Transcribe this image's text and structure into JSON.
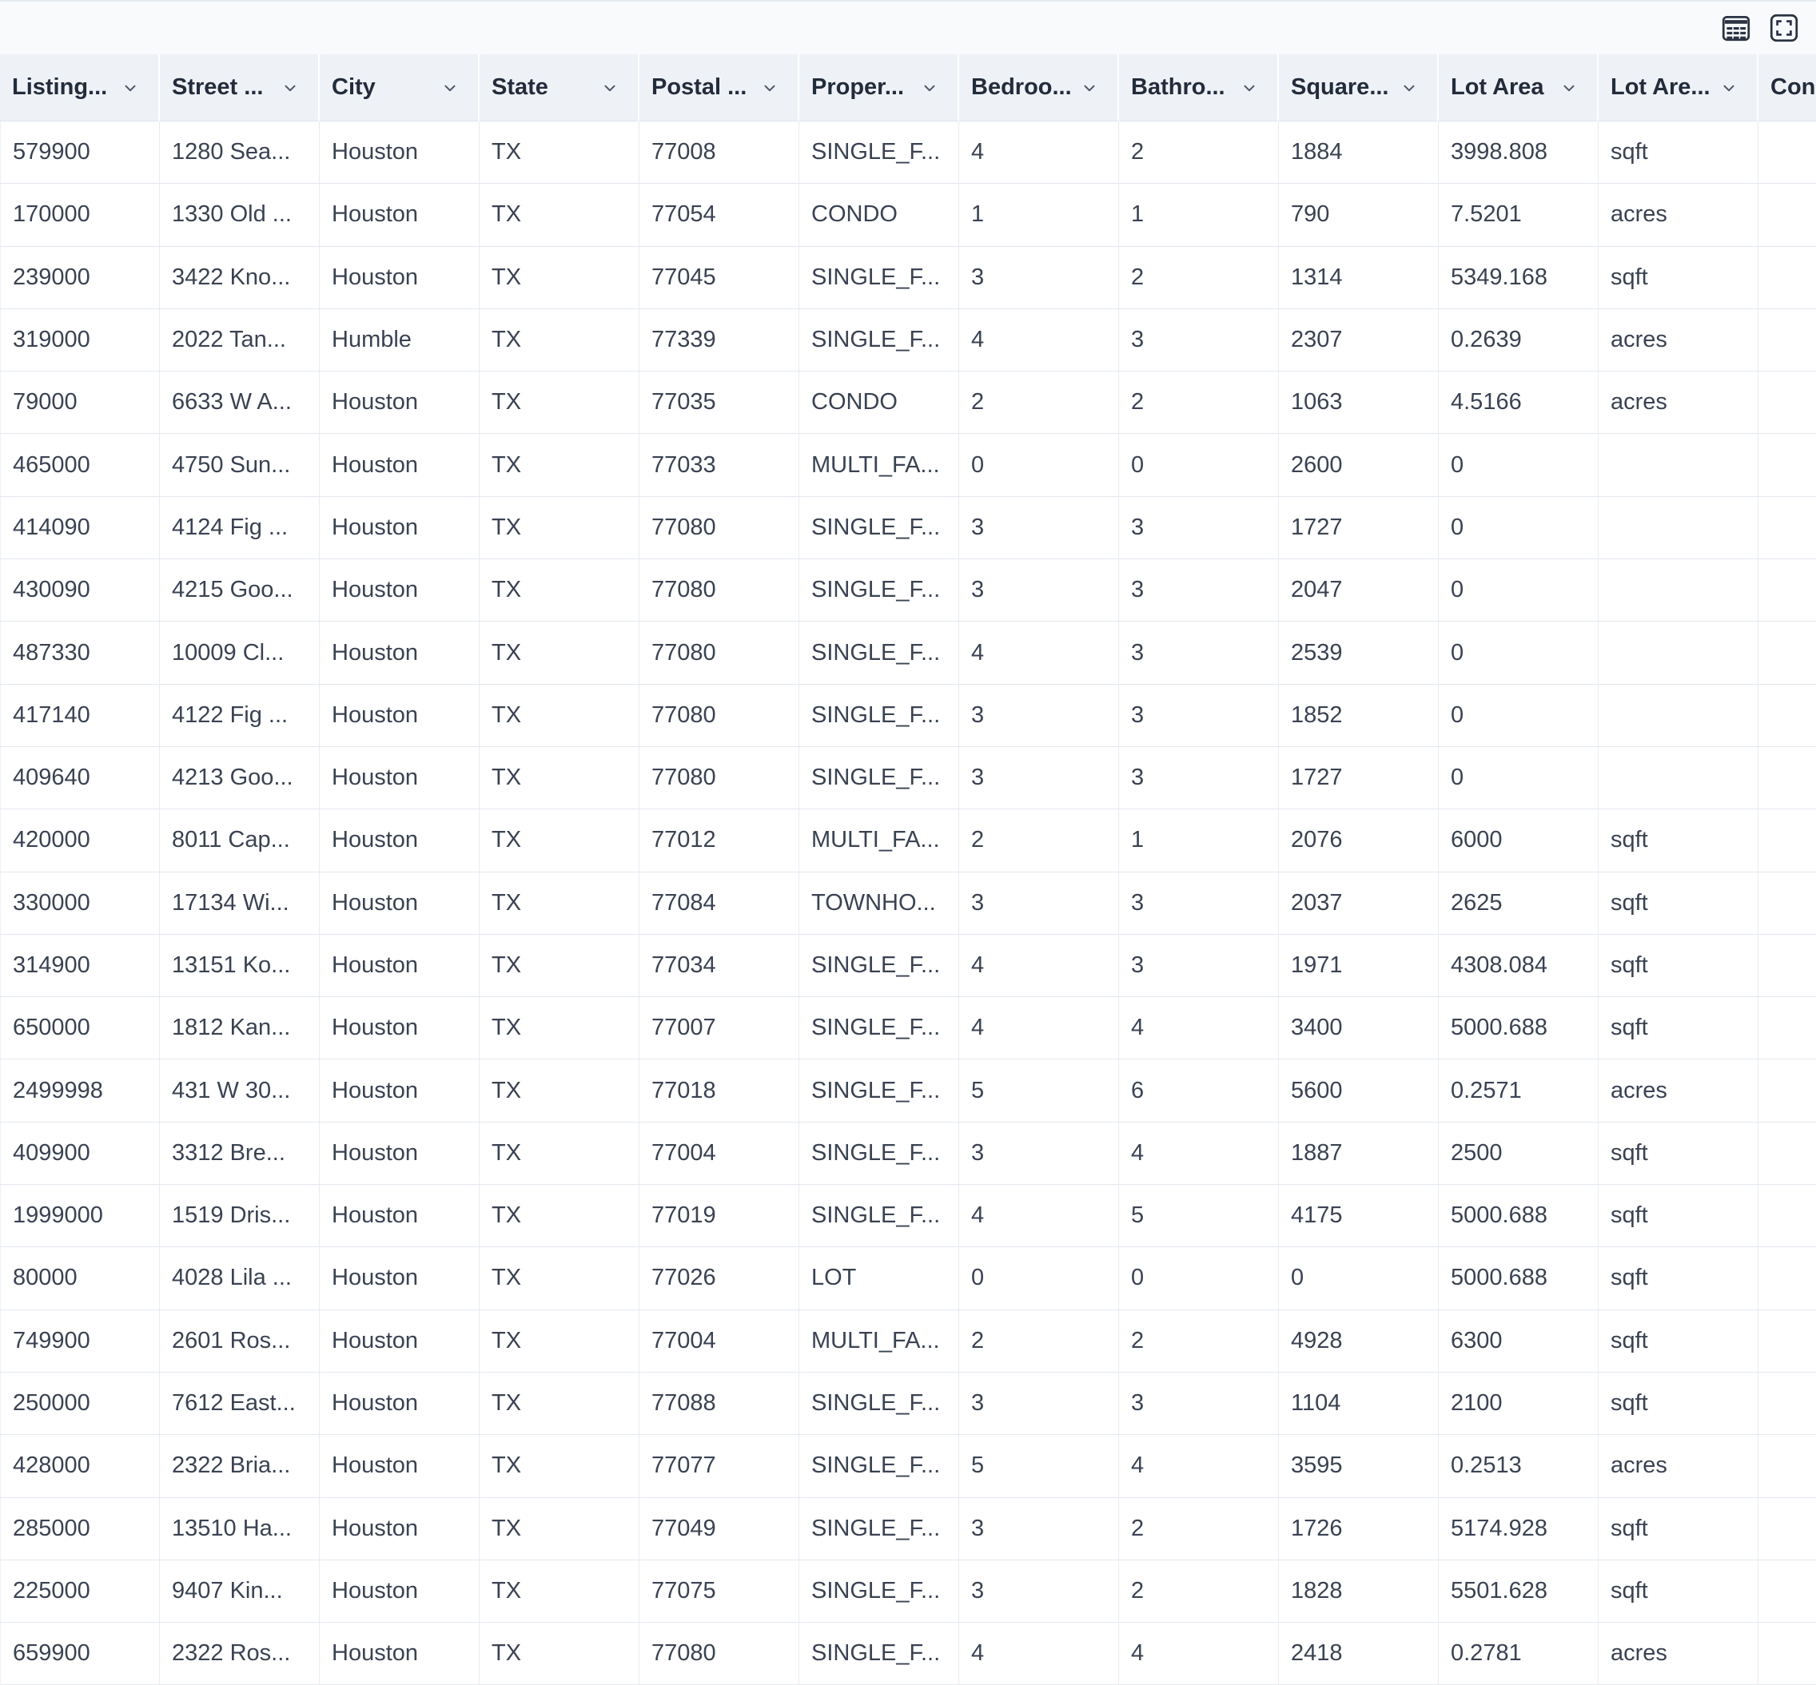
{
  "toolbar": {
    "icons": [
      {
        "name": "table-view-icon",
        "meaning": "data table view"
      },
      {
        "name": "expand-view-icon",
        "meaning": "expand / fit view"
      }
    ]
  },
  "colors": {
    "toolbar_bg": "#f8fafc",
    "header_bg": "#eef2f6",
    "row_bg": "#ffffff",
    "border": "#e3e8ef",
    "header_text": "#232c3b",
    "cell_text": "#3a4252",
    "icon": "#2b3342",
    "chevron": "#4d5668"
  },
  "table": {
    "columns": [
      {
        "label": "Listing...",
        "menu": true
      },
      {
        "label": "Street ...",
        "menu": true
      },
      {
        "label": "City",
        "menu": true
      },
      {
        "label": "State",
        "menu": true
      },
      {
        "label": "Postal ...",
        "menu": true
      },
      {
        "label": "Proper...",
        "menu": true
      },
      {
        "label": "Bedroo...",
        "menu": true
      },
      {
        "label": "Bathro...",
        "menu": true
      },
      {
        "label": "Square...",
        "menu": true
      },
      {
        "label": "Lot Area",
        "menu": true
      },
      {
        "label": "Lot Are...",
        "menu": true
      },
      {
        "label": "Con",
        "menu": false
      }
    ],
    "rows": [
      [
        "579900",
        "1280 Sea...",
        "Houston",
        "TX",
        "77008",
        "SINGLE_F...",
        "4",
        "2",
        "1884",
        "3998.808",
        "sqft",
        ""
      ],
      [
        "170000",
        "1330 Old ...",
        "Houston",
        "TX",
        "77054",
        "CONDO",
        "1",
        "1",
        "790",
        "7.5201",
        "acres",
        ""
      ],
      [
        "239000",
        "3422 Kno...",
        "Houston",
        "TX",
        "77045",
        "SINGLE_F...",
        "3",
        "2",
        "1314",
        "5349.168",
        "sqft",
        ""
      ],
      [
        "319000",
        "2022 Tan...",
        "Humble",
        "TX",
        "77339",
        "SINGLE_F...",
        "4",
        "3",
        "2307",
        "0.2639",
        "acres",
        ""
      ],
      [
        "79000",
        "6633 W A...",
        "Houston",
        "TX",
        "77035",
        "CONDO",
        "2",
        "2",
        "1063",
        "4.5166",
        "acres",
        ""
      ],
      [
        "465000",
        "4750 Sun...",
        "Houston",
        "TX",
        "77033",
        "MULTI_FA...",
        "0",
        "0",
        "2600",
        "0",
        "",
        ""
      ],
      [
        "414090",
        "4124 Fig ...",
        "Houston",
        "TX",
        "77080",
        "SINGLE_F...",
        "3",
        "3",
        "1727",
        "0",
        "",
        ""
      ],
      [
        "430090",
        "4215 Goo...",
        "Houston",
        "TX",
        "77080",
        "SINGLE_F...",
        "3",
        "3",
        "2047",
        "0",
        "",
        ""
      ],
      [
        "487330",
        "10009 Cl...",
        "Houston",
        "TX",
        "77080",
        "SINGLE_F...",
        "4",
        "3",
        "2539",
        "0",
        "",
        ""
      ],
      [
        "417140",
        "4122 Fig ...",
        "Houston",
        "TX",
        "77080",
        "SINGLE_F...",
        "3",
        "3",
        "1852",
        "0",
        "",
        ""
      ],
      [
        "409640",
        "4213 Goo...",
        "Houston",
        "TX",
        "77080",
        "SINGLE_F...",
        "3",
        "3",
        "1727",
        "0",
        "",
        ""
      ],
      [
        "420000",
        "8011 Cap...",
        "Houston",
        "TX",
        "77012",
        "MULTI_FA...",
        "2",
        "1",
        "2076",
        "6000",
        "sqft",
        ""
      ],
      [
        "330000",
        "17134 Wi...",
        "Houston",
        "TX",
        "77084",
        "TOWNHO...",
        "3",
        "3",
        "2037",
        "2625",
        "sqft",
        ""
      ],
      [
        "314900",
        "13151 Ko...",
        "Houston",
        "TX",
        "77034",
        "SINGLE_F...",
        "4",
        "3",
        "1971",
        "4308.084",
        "sqft",
        ""
      ],
      [
        "650000",
        "1812 Kan...",
        "Houston",
        "TX",
        "77007",
        "SINGLE_F...",
        "4",
        "4",
        "3400",
        "5000.688",
        "sqft",
        ""
      ],
      [
        "2499998",
        "431 W 30...",
        "Houston",
        "TX",
        "77018",
        "SINGLE_F...",
        "5",
        "6",
        "5600",
        "0.2571",
        "acres",
        ""
      ],
      [
        "409900",
        "3312 Bre...",
        "Houston",
        "TX",
        "77004",
        "SINGLE_F...",
        "3",
        "4",
        "1887",
        "2500",
        "sqft",
        ""
      ],
      [
        "1999000",
        "1519 Dris...",
        "Houston",
        "TX",
        "77019",
        "SINGLE_F...",
        "4",
        "5",
        "4175",
        "5000.688",
        "sqft",
        ""
      ],
      [
        "80000",
        "4028 Lila ...",
        "Houston",
        "TX",
        "77026",
        "LOT",
        "0",
        "0",
        "0",
        "5000.688",
        "sqft",
        ""
      ],
      [
        "749900",
        "2601 Ros...",
        "Houston",
        "TX",
        "77004",
        "MULTI_FA...",
        "2",
        "2",
        "4928",
        "6300",
        "sqft",
        ""
      ],
      [
        "250000",
        "7612 East...",
        "Houston",
        "TX",
        "77088",
        "SINGLE_F...",
        "3",
        "3",
        "1104",
        "2100",
        "sqft",
        ""
      ],
      [
        "428000",
        "2322 Bria...",
        "Houston",
        "TX",
        "77077",
        "SINGLE_F...",
        "5",
        "4",
        "3595",
        "0.2513",
        "acres",
        ""
      ],
      [
        "285000",
        "13510 Ha...",
        "Houston",
        "TX",
        "77049",
        "SINGLE_F...",
        "3",
        "2",
        "1726",
        "5174.928",
        "sqft",
        ""
      ],
      [
        "225000",
        "9407 Kin...",
        "Houston",
        "TX",
        "77075",
        "SINGLE_F...",
        "3",
        "2",
        "1828",
        "5501.628",
        "sqft",
        ""
      ],
      [
        "659900",
        "2322 Ros...",
        "Houston",
        "TX",
        "77080",
        "SINGLE_F...",
        "4",
        "4",
        "2418",
        "0.2781",
        "acres",
        ""
      ]
    ]
  }
}
